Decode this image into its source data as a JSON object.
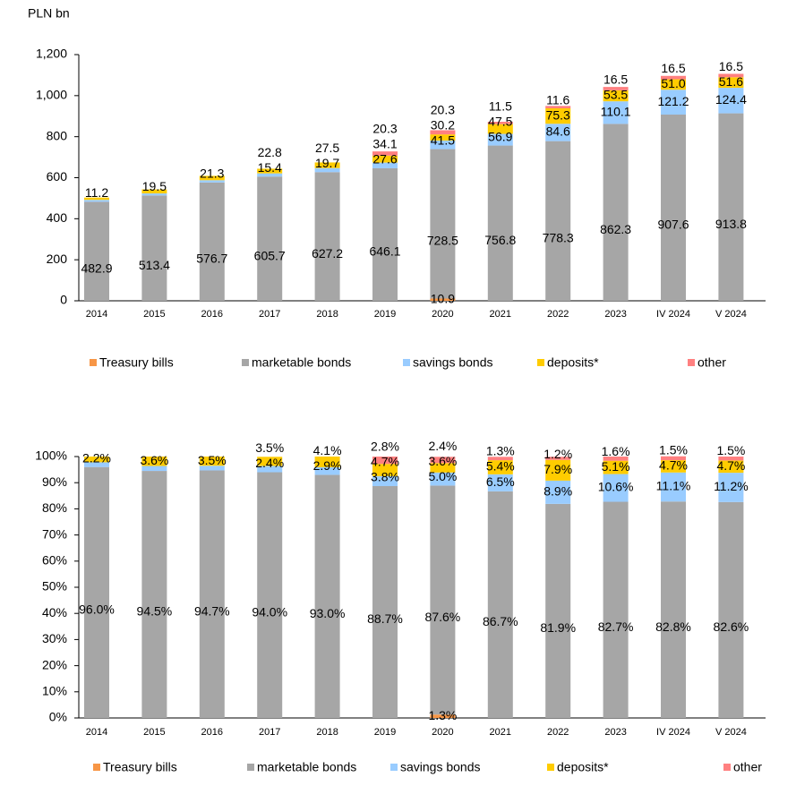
{
  "chart_data": [
    {
      "type": "bar",
      "stacked": true,
      "y_label": "PLN bn",
      "categories": [
        "2014",
        "2015",
        "2016",
        "2017",
        "2018",
        "2019",
        "2020",
        "2021",
        "2022",
        "2023",
        "IV 2024",
        "V 2024"
      ],
      "series": [
        {
          "name": "Treasury bills",
          "color": "#f79646",
          "values": [
            0,
            0,
            0,
            0,
            0,
            0,
            10.9,
            0,
            0,
            0,
            0,
            0
          ],
          "value_labels": [
            null,
            null,
            null,
            null,
            null,
            null,
            "10.9",
            null,
            null,
            null,
            null,
            null
          ]
        },
        {
          "name": "marketable bonds",
          "color": "#a6a6a6",
          "values": [
            482.9,
            513.4,
            576.7,
            605.7,
            627.2,
            646.1,
            728.5,
            756.8,
            778.3,
            862.3,
            907.6,
            913.8
          ],
          "value_labels": [
            "482.9",
            "513.4",
            "576.7",
            "605.7",
            "627.2",
            "646.1",
            "728.5",
            "756.8",
            "778.3",
            "862.3",
            "907.6",
            "913.8"
          ]
        },
        {
          "name": "savings bonds",
          "color": "#99ccff",
          "values": [
            9,
            10,
            11,
            15.4,
            19.7,
            27.6,
            41.5,
            56.9,
            84.6,
            110.1,
            121.2,
            124.4
          ],
          "value_labels": [
            null,
            null,
            null,
            "15.4",
            "19.7",
            "27.6",
            "41.5",
            "56.9",
            "84.6",
            "110.1",
            "121.2",
            "124.4"
          ]
        },
        {
          "name": "deposits*",
          "color": "#ffcc00",
          "values": [
            11.2,
            19.5,
            21.3,
            22.8,
            27.5,
            34.1,
            30.2,
            47.5,
            75.3,
            53.5,
            51,
            51.6
          ],
          "value_labels": [
            "11.2",
            "19.5",
            "21.3",
            "22.8",
            "27.5",
            "34.1",
            "30.2",
            "47.5",
            "75.3",
            "53.5",
            "51.0",
            "51.6"
          ]
        },
        {
          "name": "other",
          "color": "#ff8080",
          "values": [
            0,
            0,
            0,
            0,
            0,
            20.3,
            20.3,
            11.5,
            11.6,
            16.5,
            16.5,
            16.5
          ],
          "value_labels": [
            null,
            null,
            null,
            null,
            null,
            "20.3",
            "20.3",
            "11.5",
            "11.6",
            "16.5",
            "16.5",
            "16.5"
          ]
        }
      ],
      "ylim": [
        0,
        1200
      ],
      "yticks": [
        0,
        200,
        400,
        600,
        800,
        {
          "value": 1000,
          "label": "1,000"
        },
        {
          "value": 1200,
          "label": "1,200"
        }
      ],
      "legend": "bottom"
    },
    {
      "type": "bar",
      "stacked": true,
      "categories": [
        "2014",
        "2015",
        "2016",
        "2017",
        "2018",
        "2019",
        "2020",
        "2021",
        "2022",
        "2023",
        "IV 2024",
        "V 2024"
      ],
      "series": [
        {
          "name": "Treasury bills",
          "color": "#f79646",
          "values": [
            0,
            0,
            0,
            0,
            0,
            0,
            1.3,
            0,
            0,
            0,
            0,
            0
          ],
          "value_labels": [
            null,
            null,
            null,
            null,
            null,
            null,
            "1.3%",
            null,
            null,
            null,
            null,
            null
          ]
        },
        {
          "name": "marketable bonds",
          "color": "#a6a6a6",
          "values": [
            96.0,
            94.5,
            94.7,
            94.0,
            93.0,
            88.7,
            87.6,
            86.7,
            81.9,
            82.7,
            82.8,
            82.6
          ],
          "value_labels": [
            "96.0%",
            "94.5%",
            "94.7%",
            "94.0%",
            "93.0%",
            "88.7%",
            "87.6%",
            "86.7%",
            "81.9%",
            "82.7%",
            "82.8%",
            "82.6%"
          ]
        },
        {
          "name": "savings bonds",
          "color": "#99ccff",
          "values": [
            1.8,
            1.9,
            1.8,
            2.4,
            2.9,
            3.8,
            5.0,
            6.5,
            8.9,
            10.6,
            11.1,
            11.2
          ],
          "value_labels": [
            null,
            null,
            null,
            "2.4%",
            "2.9%",
            "3.8%",
            "5.0%",
            "6.5%",
            "8.9%",
            "10.6%",
            "11.1%",
            "11.2%"
          ]
        },
        {
          "name": "deposits*",
          "color": "#ffcc00",
          "values": [
            2.2,
            3.6,
            3.5,
            3.5,
            4.1,
            4.7,
            3.6,
            5.4,
            7.9,
            5.1,
            4.7,
            4.7
          ],
          "value_labels": [
            "2.2%",
            "3.6%",
            "3.5%",
            "3.5%",
            "4.1%",
            "4.7%",
            "3.6%",
            "5.4%",
            "7.9%",
            "5.1%",
            "4.7%",
            "4.7%"
          ]
        },
        {
          "name": "other",
          "color": "#ff8080",
          "values": [
            0,
            0,
            0,
            0,
            0,
            2.8,
            2.4,
            1.3,
            1.2,
            1.6,
            1.5,
            1.5
          ],
          "value_labels": [
            null,
            null,
            null,
            null,
            null,
            "2.8%",
            "2.4%",
            "1.3%",
            "1.2%",
            "1.6%",
            "1.5%",
            "1.5%"
          ]
        }
      ],
      "ylim": [
        0,
        100
      ],
      "yticks": [
        {
          "value": 0,
          "label": "0%"
        },
        {
          "value": 10,
          "label": "10%"
        },
        {
          "value": 20,
          "label": "20%"
        },
        {
          "value": 30,
          "label": "30%"
        },
        {
          "value": 40,
          "label": "40%"
        },
        {
          "value": 50,
          "label": "50%"
        },
        {
          "value": 60,
          "label": "60%"
        },
        {
          "value": 70,
          "label": "70%"
        },
        {
          "value": 80,
          "label": "80%"
        },
        {
          "value": 90,
          "label": "90%"
        },
        {
          "value": 100,
          "label": "100%"
        }
      ],
      "legend": "bottom"
    }
  ]
}
